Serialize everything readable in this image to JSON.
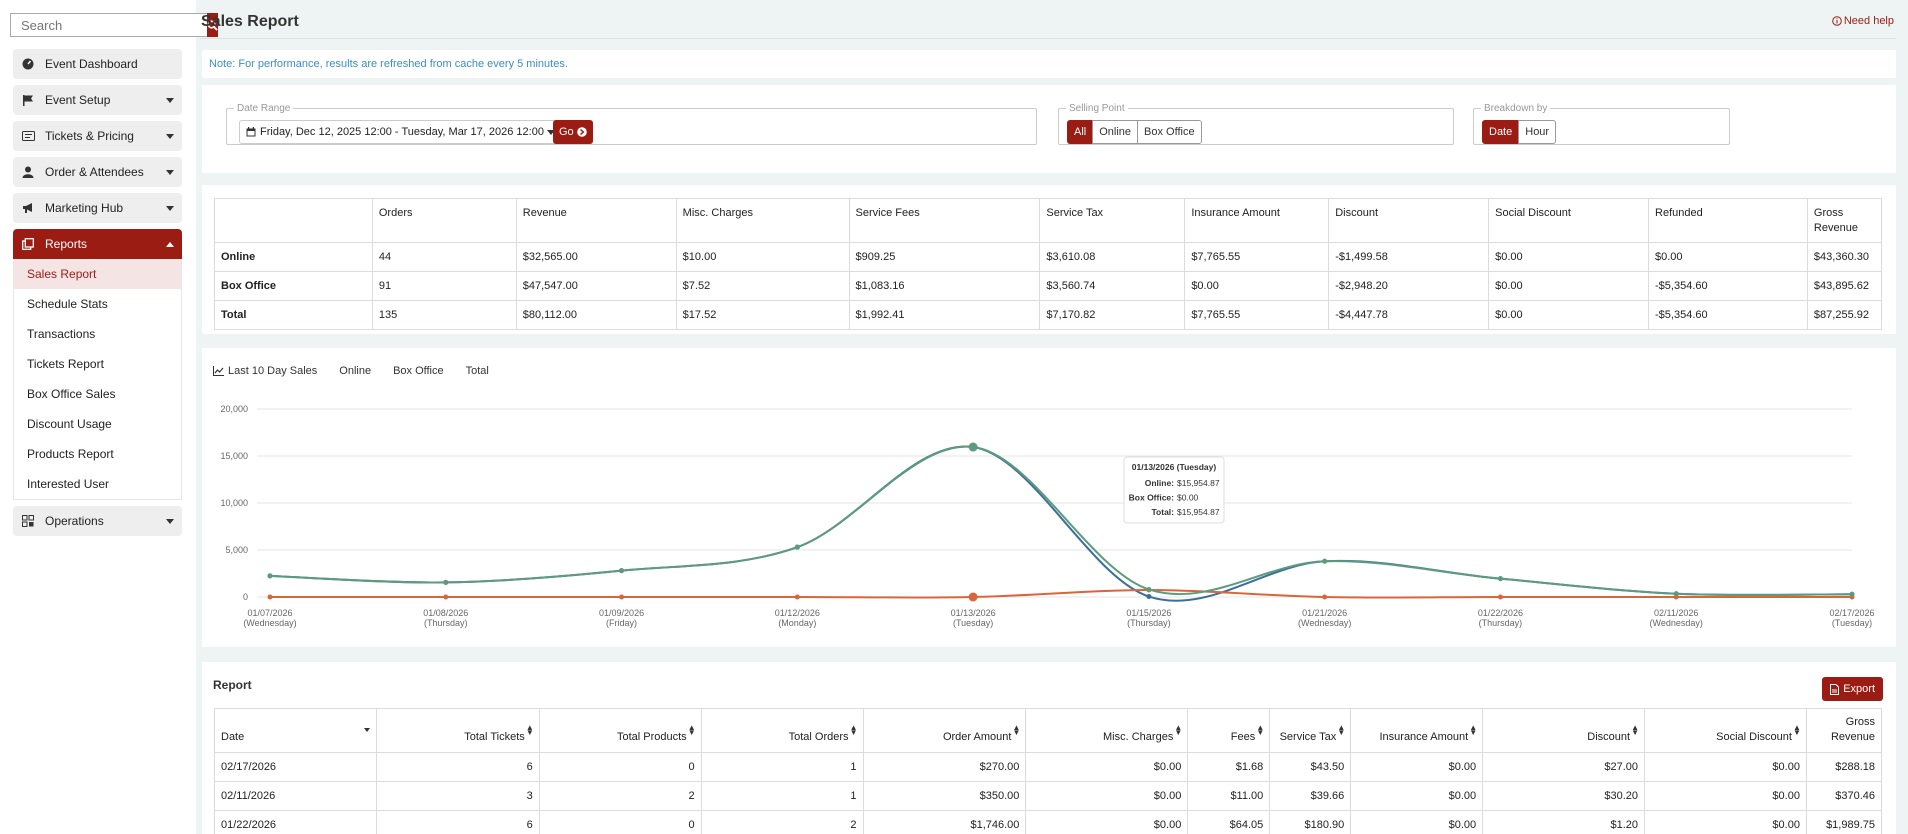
{
  "sidebar": {
    "search_placeholder": "Search",
    "items": [
      {
        "label": "Event Dashboard",
        "icon": "dashboard-icon"
      },
      {
        "label": "Event Setup",
        "icon": "flag-icon"
      },
      {
        "label": "Tickets & Pricing",
        "icon": "ticket-icon"
      },
      {
        "label": "Order & Attendees",
        "icon": "user-icon"
      },
      {
        "label": "Marketing Hub",
        "icon": "bullhorn-icon"
      },
      {
        "label": "Reports",
        "icon": "reports-icon"
      },
      {
        "label": "Operations",
        "icon": "operations-icon"
      }
    ],
    "reports_sub": [
      "Sales Report",
      "Schedule Stats",
      "Transactions",
      "Tickets Report",
      "Box Office Sales",
      "Discount Usage",
      "Products Report",
      "Interested User"
    ]
  },
  "header": {
    "title": "Sales Report",
    "help": "Need help"
  },
  "note": "Note: For performance, results are refreshed from cache every 5 minutes.",
  "filters": {
    "date_range_legend": "Date Range",
    "date_range_value": "Friday, Dec 12, 2025 12:00 - Tuesday, Mar 17, 2026 12:00",
    "go_label": "Go",
    "selling_point_legend": "Selling Point",
    "selling_point_options": [
      "All",
      "Online",
      "Box Office"
    ],
    "breakdown_legend": "Breakdown by",
    "breakdown_options": [
      "Date",
      "Hour"
    ]
  },
  "summary": {
    "headers": [
      "",
      "Orders",
      "Revenue",
      "Misc. Charges",
      "Service Fees",
      "Service Tax",
      "Insurance Amount",
      "Discount",
      "Social Discount",
      "Refunded",
      "Gross Revenue"
    ],
    "rows": [
      [
        "Online",
        "44",
        "$32,565.00",
        "$10.00",
        "$909.25",
        "$3,610.08",
        "$7,765.55",
        "-$1,499.58",
        "$0.00",
        "$0.00",
        "$43,360.30"
      ],
      [
        "Box Office",
        "91",
        "$47,547.00",
        "$7.52",
        "$1,083.16",
        "$3,560.74",
        "$0.00",
        "-$2,948.20",
        "$0.00",
        "-$5,354.60",
        "$43,895.62"
      ],
      [
        "Total",
        "135",
        "$80,112.00",
        "$17.52",
        "$1,992.41",
        "$7,170.82",
        "$7,765.55",
        "-$4,447.78",
        "$0.00",
        "-$5,354.60",
        "$87,255.92"
      ]
    ]
  },
  "chart_tabs": [
    "Last 10 Day Sales",
    "Online",
    "Box Office",
    "Total"
  ],
  "chart_data": {
    "type": "line",
    "categories": [
      "01/07/2026 (Wednesday)",
      "01/08/2026 (Thursday)",
      "01/09/2026 (Friday)",
      "01/12/2026 (Monday)",
      "01/13/2026 (Tuesday)",
      "01/15/2026 (Thursday)",
      "01/21/2026 (Wednesday)",
      "01/22/2026 (Thursday)",
      "02/11/2026 (Wednesday)",
      "02/17/2026 (Tuesday)"
    ],
    "yticks": [
      0,
      5000,
      10000,
      15000,
      20000
    ],
    "ytick_labels": [
      "0",
      "5,000",
      "10,000",
      "15,000",
      "20,000"
    ],
    "ylim": [
      0,
      20000
    ],
    "series": [
      {
        "values": [
          2250,
          1550,
          2800,
          5300,
          15954.87,
          50,
          3800,
          1950,
          350,
          290
        ],
        "color": "#3a6f9a"
      },
      {
        "values": [
          0,
          0,
          0,
          0,
          0,
          750,
          0,
          0,
          0,
          0
        ],
        "color": "#d9653b"
      },
      {
        "values": [
          2250,
          1550,
          2800,
          5300,
          15954.87,
          800,
          3800,
          1950,
          350,
          290
        ],
        "color": "#5e9b7e"
      }
    ],
    "tooltip": {
      "title": "01/13/2026 (Tuesday)",
      "lines": [
        {
          "label": "Online",
          "value": "$15,954.87"
        },
        {
          "label": "Box Office",
          "value": "$0.00"
        },
        {
          "label": "Total",
          "value": "$15,954.87"
        }
      ]
    }
  },
  "report": {
    "title": "Report",
    "export_label": "Export",
    "headers": [
      "Date",
      "Total Tickets",
      "Total Products",
      "Total Orders",
      "Order Amount",
      "Misc. Charges",
      "Fees",
      "Service Tax",
      "Insurance Amount",
      "Discount",
      "Social Discount",
      "Gross Revenue"
    ],
    "rows": [
      [
        "02/17/2026",
        "6",
        "0",
        "1",
        "$270.00",
        "$0.00",
        "$1.68",
        "$43.50",
        "$0.00",
        "$27.00",
        "$0.00",
        "$288.18"
      ],
      [
        "02/11/2026",
        "3",
        "2",
        "1",
        "$350.00",
        "$0.00",
        "$11.00",
        "$39.66",
        "$0.00",
        "$30.20",
        "$0.00",
        "$370.46"
      ],
      [
        "01/22/2026",
        "6",
        "0",
        "2",
        "$1,746.00",
        "$0.00",
        "$64.05",
        "$180.90",
        "$0.00",
        "$1.20",
        "$0.00",
        "$1,989.75"
      ]
    ]
  }
}
